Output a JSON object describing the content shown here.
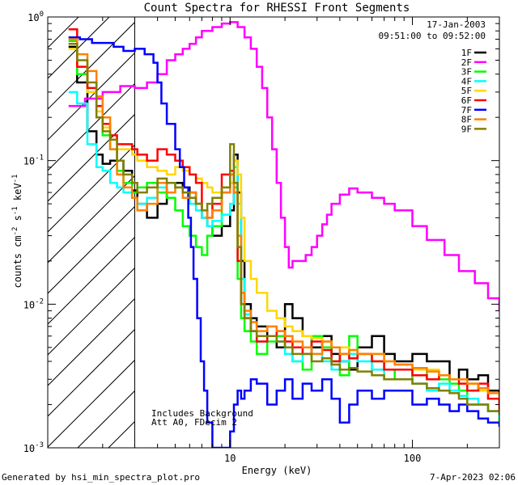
{
  "chart_data": {
    "type": "line",
    "title": "Count Spectra for RHESSI Front Segments",
    "xlabel": "Energy (keV)",
    "ylabel": "counts cm^-2 s^-1 keV^-1",
    "ylabel_parts": {
      "base": "counts cm",
      "e1": "-2",
      "s": " s",
      "e2": "-1",
      "kev": " keV",
      "e3": "-1"
    },
    "xscale": "log",
    "yscale": "log",
    "xlim": [
      1.0,
      300
    ],
    "ylim": [
      0.001,
      1.0
    ],
    "x_ticks": [
      {
        "value": 10,
        "label": "10"
      },
      {
        "value": 100,
        "label": "100"
      }
    ],
    "y_ticks": [
      {
        "value": 0.001,
        "base": "10",
        "exp": "-3"
      },
      {
        "value": 0.01,
        "base": "10",
        "exp": "-2"
      },
      {
        "value": 0.1,
        "base": "10",
        "exp": "-1"
      },
      {
        "value": 1,
        "base": "10",
        "exp": "0"
      }
    ],
    "hatched_region_keV": [
      1.0,
      3.0
    ],
    "annotations": {
      "date": "17-Jan-2003",
      "time_range": "09:51:00 to 09:52:00",
      "background_note": "Includes Background",
      "atten_note": "Att A0, FDecim 2"
    },
    "footer_left": "Generated by hsi_min_spectra_plot.pro",
    "footer_right": "7-Apr-2023 02:06",
    "series": [
      {
        "name": "1F",
        "color": "#000000",
        "x": [
          1.3,
          1.45,
          1.65,
          1.85,
          2.0,
          2.2,
          2.4,
          2.6,
          2.9,
          3.1,
          3.5,
          4.0,
          4.5,
          5.0,
          5.5,
          6.0,
          6.5,
          7.0,
          7.5,
          8.0,
          9.0,
          10.0,
          10.5,
          11.0,
          11.5,
          12,
          13,
          14,
          16,
          18,
          20,
          22,
          25,
          28,
          32,
          36,
          40,
          45,
          50,
          60,
          70,
          80,
          100,
          120,
          140,
          160,
          180,
          200,
          230,
          260,
          300
        ],
        "y": [
          0.62,
          0.35,
          0.16,
          0.11,
          0.095,
          0.1,
          0.1,
          0.085,
          0.062,
          0.05,
          0.04,
          0.05,
          0.07,
          0.07,
          0.065,
          0.06,
          0.05,
          0.04,
          0.035,
          0.03,
          0.035,
          0.045,
          0.11,
          0.06,
          0.02,
          0.01,
          0.008,
          0.007,
          0.006,
          0.005,
          0.01,
          0.008,
          0.006,
          0.005,
          0.006,
          0.0045,
          0.004,
          0.0035,
          0.005,
          0.006,
          0.0045,
          0.004,
          0.0045,
          0.004,
          0.004,
          0.003,
          0.0035,
          0.003,
          0.0032,
          0.0025,
          0.002
        ]
      },
      {
        "name": "2F",
        "color": "#ff00ff",
        "x": [
          1.3,
          1.6,
          2.0,
          2.5,
          3.0,
          3.5,
          4.0,
          4.5,
          5.0,
          5.5,
          6.0,
          6.5,
          7.0,
          8.0,
          9.0,
          10.0,
          11.0,
          12.0,
          13.0,
          14.0,
          15.0,
          16.0,
          17.0,
          18.0,
          19.0,
          20.0,
          21.0,
          22.0,
          24.0,
          26.0,
          28.0,
          30.0,
          32.0,
          34.0,
          36.0,
          40.0,
          45.0,
          50.0,
          60.0,
          70.0,
          80.0,
          100.0,
          120.0,
          150.0,
          180.0,
          220.0,
          260.0,
          300.0
        ],
        "y": [
          0.24,
          0.27,
          0.3,
          0.33,
          0.32,
          0.35,
          0.4,
          0.5,
          0.55,
          0.6,
          0.65,
          0.72,
          0.8,
          0.85,
          0.9,
          0.92,
          0.85,
          0.72,
          0.6,
          0.45,
          0.32,
          0.2,
          0.12,
          0.07,
          0.04,
          0.025,
          0.018,
          0.02,
          0.02,
          0.022,
          0.025,
          0.03,
          0.036,
          0.042,
          0.05,
          0.058,
          0.064,
          0.06,
          0.055,
          0.05,
          0.045,
          0.035,
          0.028,
          0.022,
          0.017,
          0.014,
          0.011,
          0.009
        ]
      },
      {
        "name": "3F",
        "color": "#00ff00",
        "x": [
          1.3,
          1.45,
          1.65,
          1.85,
          2.0,
          2.2,
          2.4,
          2.6,
          2.9,
          3.1,
          3.5,
          4.0,
          4.5,
          5.0,
          5.5,
          6.0,
          6.5,
          7.0,
          7.5,
          8.0,
          9.0,
          10.0,
          10.5,
          11.0,
          11.5,
          12,
          13,
          14,
          16,
          18,
          20,
          22,
          25,
          28,
          32,
          36,
          40,
          45,
          50,
          60,
          70,
          80,
          100,
          120,
          140,
          160,
          180,
          200,
          230,
          260,
          300
        ],
        "y": [
          0.68,
          0.4,
          0.3,
          0.2,
          0.15,
          0.12,
          0.085,
          0.07,
          0.06,
          0.065,
          0.07,
          0.06,
          0.055,
          0.045,
          0.035,
          0.03,
          0.025,
          0.022,
          0.03,
          0.035,
          0.06,
          0.08,
          0.065,
          0.015,
          0.008,
          0.0065,
          0.0055,
          0.0045,
          0.0055,
          0.006,
          0.005,
          0.004,
          0.0035,
          0.006,
          0.005,
          0.004,
          0.0032,
          0.006,
          0.0045,
          0.004,
          0.0035,
          0.003,
          0.0035,
          0.003,
          0.003,
          0.0028,
          0.0025,
          0.002,
          0.002,
          0.0018,
          0.0015
        ]
      },
      {
        "name": "4F",
        "color": "#00ffff",
        "x": [
          1.3,
          1.45,
          1.65,
          1.85,
          2.0,
          2.2,
          2.4,
          2.6,
          2.9,
          3.1,
          3.5,
          4.0,
          4.5,
          5.0,
          5.5,
          6.0,
          6.5,
          7.0,
          7.5,
          8.0,
          9.0,
          10.0,
          10.5,
          11.0,
          11.5,
          12,
          13,
          14,
          16,
          18,
          20,
          22,
          25,
          28,
          32,
          36,
          40,
          45,
          50,
          60,
          70,
          80,
          100,
          120,
          140,
          160,
          180,
          200,
          230,
          260,
          300
        ],
        "y": [
          0.3,
          0.25,
          0.13,
          0.09,
          0.085,
          0.07,
          0.065,
          0.06,
          0.055,
          0.05,
          0.055,
          0.065,
          0.07,
          0.065,
          0.06,
          0.05,
          0.045,
          0.04,
          0.035,
          0.038,
          0.042,
          0.05,
          0.09,
          0.05,
          0.015,
          0.0085,
          0.0065,
          0.0055,
          0.006,
          0.0055,
          0.0045,
          0.004,
          0.005,
          0.0045,
          0.004,
          0.0035,
          0.004,
          0.0045,
          0.004,
          0.0035,
          0.003,
          0.003,
          0.0028,
          0.0025,
          0.0028,
          0.0025,
          0.0023,
          0.0022,
          0.002,
          0.0018,
          0.0016
        ]
      },
      {
        "name": "5F",
        "color": "#ffd700",
        "x": [
          1.3,
          1.45,
          1.65,
          1.85,
          2.0,
          2.2,
          2.4,
          2.6,
          2.9,
          3.1,
          3.5,
          4.0,
          4.5,
          5.0,
          5.5,
          6.0,
          6.5,
          7.0,
          7.5,
          8.0,
          9.0,
          10.0,
          10.5,
          11.0,
          11.5,
          12,
          13,
          14,
          16,
          18,
          20,
          22,
          25,
          28,
          32,
          36,
          40,
          45,
          50,
          60,
          70,
          80,
          100,
          120,
          140,
          160,
          180,
          200,
          230,
          260,
          300
        ],
        "y": [
          0.6,
          0.45,
          0.3,
          0.22,
          0.17,
          0.14,
          0.12,
          0.12,
          0.11,
          0.1,
          0.09,
          0.085,
          0.08,
          0.09,
          0.085,
          0.08,
          0.075,
          0.07,
          0.065,
          0.06,
          0.065,
          0.07,
          0.1,
          0.08,
          0.04,
          0.02,
          0.015,
          0.012,
          0.009,
          0.008,
          0.007,
          0.0065,
          0.006,
          0.0058,
          0.0055,
          0.005,
          0.005,
          0.0048,
          0.0045,
          0.0045,
          0.004,
          0.0038,
          0.0035,
          0.0035,
          0.0032,
          0.003,
          0.003,
          0.0028,
          0.0025,
          0.0022,
          0.002
        ]
      },
      {
        "name": "6F",
        "color": "#ff0000",
        "x": [
          1.3,
          1.45,
          1.65,
          1.85,
          2.0,
          2.2,
          2.4,
          2.6,
          2.9,
          3.1,
          3.5,
          4.0,
          4.5,
          5.0,
          5.5,
          6.0,
          6.5,
          7.0,
          7.5,
          8.0,
          9.0,
          10.0,
          10.5,
          11.0,
          11.5,
          12,
          13,
          14,
          16,
          18,
          20,
          22,
          25,
          28,
          32,
          36,
          40,
          45,
          50,
          60,
          70,
          80,
          100,
          120,
          140,
          160,
          180,
          200,
          230,
          260,
          300
        ],
        "y": [
          0.82,
          0.45,
          0.32,
          0.24,
          0.18,
          0.15,
          0.13,
          0.13,
          0.12,
          0.11,
          0.1,
          0.12,
          0.11,
          0.1,
          0.09,
          0.08,
          0.07,
          0.045,
          0.04,
          0.05,
          0.08,
          0.085,
          0.06,
          0.02,
          0.01,
          0.008,
          0.0065,
          0.0055,
          0.006,
          0.0065,
          0.0055,
          0.005,
          0.0045,
          0.0055,
          0.0048,
          0.004,
          0.0045,
          0.0042,
          0.0045,
          0.004,
          0.0035,
          0.0035,
          0.0032,
          0.003,
          0.0032,
          0.003,
          0.0028,
          0.0025,
          0.0028,
          0.0022,
          0.0018
        ]
      },
      {
        "name": "7F",
        "color": "#0000ff",
        "x": [
          1.3,
          1.5,
          1.75,
          2.0,
          2.3,
          2.6,
          3.0,
          3.4,
          3.8,
          4.0,
          4.2,
          4.5,
          5.0,
          5.3,
          5.6,
          5.9,
          6.1,
          6.3,
          6.6,
          6.9,
          7.2,
          7.5,
          8.0,
          9.0,
          10.0,
          10.5,
          11.0,
          11.5,
          12,
          13,
          14,
          16,
          18,
          20,
          22,
          25,
          28,
          32,
          36,
          40,
          45,
          50,
          60,
          70,
          80,
          100,
          120,
          140,
          160,
          180,
          200,
          230,
          260,
          300
        ],
        "y": [
          0.72,
          0.7,
          0.66,
          0.66,
          0.62,
          0.58,
          0.6,
          0.55,
          0.48,
          0.35,
          0.25,
          0.18,
          0.12,
          0.09,
          0.065,
          0.04,
          0.025,
          0.015,
          0.008,
          0.004,
          0.0025,
          0.0015,
          0.001,
          0.001,
          0.0013,
          0.002,
          0.0025,
          0.0022,
          0.0025,
          0.003,
          0.0028,
          0.002,
          0.0025,
          0.003,
          0.0022,
          0.0028,
          0.0025,
          0.003,
          0.0022,
          0.0015,
          0.002,
          0.0025,
          0.0022,
          0.0025,
          0.0025,
          0.002,
          0.0022,
          0.002,
          0.0018,
          0.002,
          0.0018,
          0.0016,
          0.0015,
          0.0014
        ]
      },
      {
        "name": "8F",
        "color": "#ff8000",
        "x": [
          1.3,
          1.45,
          1.65,
          1.85,
          2.0,
          2.2,
          2.4,
          2.6,
          2.9,
          3.1,
          3.5,
          4.0,
          4.5,
          5.0,
          5.5,
          6.0,
          6.5,
          7.0,
          7.5,
          8.0,
          9.0,
          10.0,
          10.5,
          11.0,
          11.5,
          12,
          13,
          14,
          16,
          18,
          20,
          22,
          25,
          28,
          32,
          36,
          40,
          45,
          50,
          60,
          70,
          80,
          100,
          120,
          140,
          160,
          180,
          200,
          230,
          260,
          300
        ],
        "y": [
          0.7,
          0.55,
          0.42,
          0.28,
          0.2,
          0.12,
          0.08,
          0.065,
          0.055,
          0.045,
          0.05,
          0.07,
          0.06,
          0.065,
          0.055,
          0.06,
          0.05,
          0.045,
          0.04,
          0.045,
          0.06,
          0.08,
          0.06,
          0.03,
          0.012,
          0.009,
          0.0075,
          0.0065,
          0.007,
          0.0065,
          0.006,
          0.0055,
          0.005,
          0.0045,
          0.0055,
          0.005,
          0.0045,
          0.0048,
          0.0045,
          0.0045,
          0.004,
          0.0038,
          0.0036,
          0.0034,
          0.0032,
          0.003,
          0.003,
          0.0028,
          0.0026,
          0.0024,
          0.0022
        ]
      },
      {
        "name": "9F",
        "color": "#808000",
        "x": [
          1.3,
          1.45,
          1.65,
          1.85,
          2.0,
          2.2,
          2.4,
          2.6,
          2.9,
          3.1,
          3.5,
          4.0,
          4.5,
          5.0,
          5.5,
          6.0,
          6.5,
          7.0,
          7.5,
          8.0,
          9.0,
          10.0,
          10.5,
          11.0,
          11.5,
          12,
          13,
          14,
          16,
          18,
          20,
          22,
          25,
          28,
          32,
          36,
          40,
          45,
          50,
          60,
          70,
          80,
          100,
          120,
          140,
          160,
          180,
          200,
          230,
          260,
          300
        ],
        "y": [
          0.65,
          0.5,
          0.35,
          0.2,
          0.16,
          0.14,
          0.1,
          0.08,
          0.07,
          0.06,
          0.065,
          0.075,
          0.07,
          0.065,
          0.06,
          0.055,
          0.05,
          0.045,
          0.05,
          0.055,
          0.065,
          0.13,
          0.07,
          0.025,
          0.01,
          0.008,
          0.0065,
          0.006,
          0.006,
          0.0055,
          0.005,
          0.0045,
          0.0045,
          0.004,
          0.0042,
          0.0038,
          0.0035,
          0.0036,
          0.0034,
          0.0032,
          0.003,
          0.003,
          0.0028,
          0.0026,
          0.0025,
          0.0024,
          0.0022,
          0.002,
          0.002,
          0.0018,
          0.0017
        ]
      }
    ]
  }
}
